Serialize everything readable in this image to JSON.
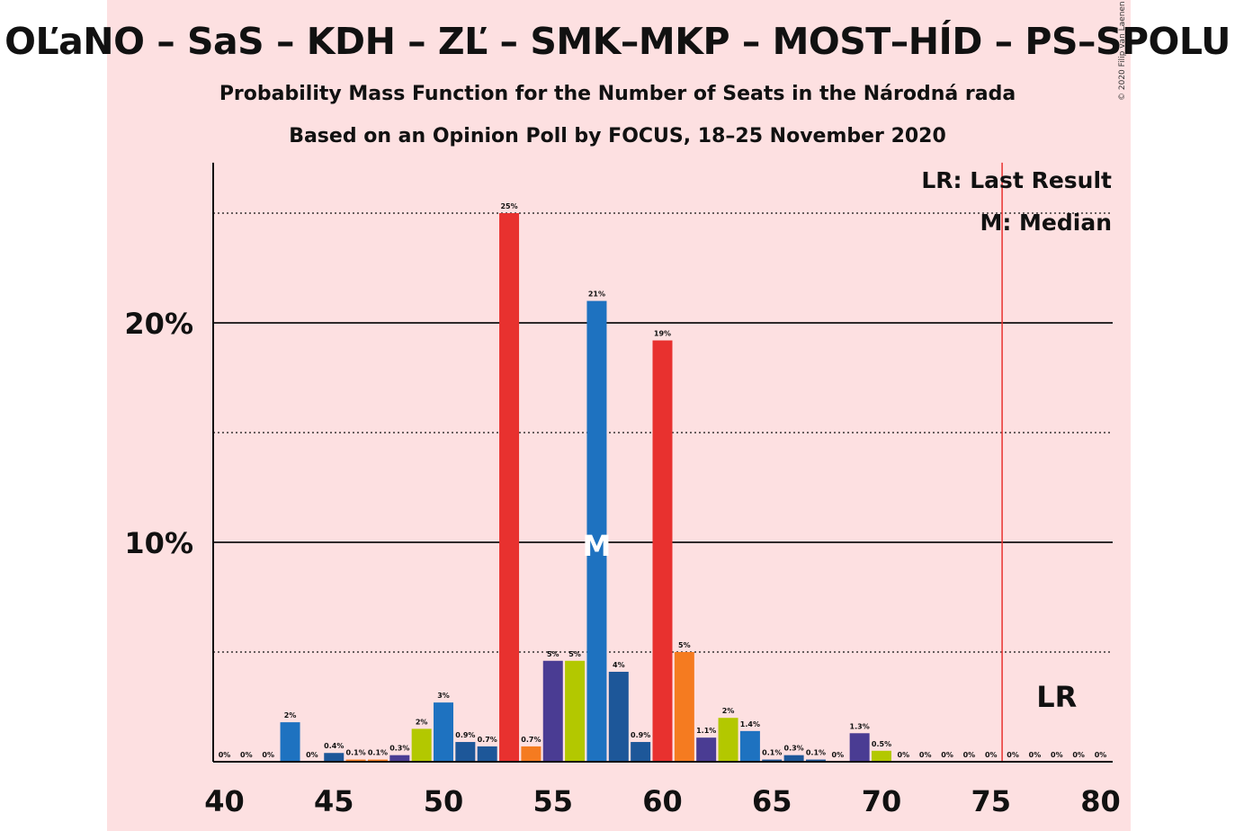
{
  "title": "OĽaNO – SaS – KDH – ZĽ – SMK–MKP – MOST–HÍD – PS–SPOLU",
  "subtitle1": "Probability Mass Function for the Number of Seats in the Národná rada",
  "subtitle2": "Based on an Opinion Poll by FOCUS, 18–25 November 2020",
  "copyright": "© 2020 Filip van Laenen",
  "legend": {
    "lr": "LR: Last Result",
    "m": "M: Median"
  },
  "markers": {
    "median_label": "M",
    "last_result_label": "LR"
  },
  "colors": {
    "background": "#fde0e1",
    "OĽaNO": "#1e72c0",
    "SaS": "#e8312f",
    "KDH": "#4a3c93",
    "ZĽ": "#b3c800",
    "SMK–MKP": "#1d5799",
    "PS–SPOLU": "#f57b20",
    "last_result_line": "#e8312f"
  },
  "chart_data": {
    "type": "bar",
    "x": [
      40,
      41,
      42,
      43,
      44,
      45,
      46,
      47,
      48,
      49,
      50,
      51,
      52,
      53,
      54,
      55,
      56,
      57,
      58,
      59,
      60,
      61,
      62,
      63,
      64,
      65,
      66,
      67,
      68,
      69,
      70,
      71,
      72,
      73,
      74,
      75,
      76,
      77,
      78,
      79,
      80
    ],
    "values": [
      0,
      0,
      0,
      1.8,
      0,
      0.4,
      0.1,
      0.1,
      0.3,
      1.5,
      2.7,
      0.9,
      0.7,
      25,
      0.7,
      4.6,
      4.6,
      21,
      4.1,
      0.9,
      19.2,
      5.0,
      1.1,
      2.0,
      1.4,
      0.1,
      0.3,
      0.1,
      0,
      1.3,
      0.5,
      0,
      0,
      0,
      0,
      0,
      0,
      0,
      0,
      0,
      0
    ],
    "labels": [
      "0%",
      "0%",
      "0%",
      "2%",
      "0%",
      "0.4%",
      "0.1%",
      "0.1%",
      "0.3%",
      "2%",
      "3%",
      "0.9%",
      "0.7%",
      "25%",
      "0.7%",
      "5%",
      "5%",
      "21%",
      "4%",
      "0.9%",
      "19%",
      "5%",
      "1.1%",
      "2%",
      "1.4%",
      "0.1%",
      "0.3%",
      "0.1%",
      "0%",
      "1.3%",
      "0.5%",
      "0%",
      "0%",
      "0%",
      "0%",
      "0%",
      "0%",
      "0%",
      "0%",
      "0%",
      "0%"
    ],
    "bar_colors": [
      "#1e72c0",
      "#1e72c0",
      "#1e72c0",
      "#1e72c0",
      "#1d5799",
      "#1d5799",
      "#f57b20",
      "#f57b20",
      "#4a3c93",
      "#b3c800",
      "#1e72c0",
      "#1d5799",
      "#1d5799",
      "#e8312f",
      "#f57b20",
      "#4a3c93",
      "#b3c800",
      "#1e72c0",
      "#1d5799",
      "#1d5799",
      "#e8312f",
      "#f57b20",
      "#4a3c93",
      "#b3c800",
      "#1e72c0",
      "#1d5799",
      "#1d5799",
      "#1d5799",
      "#4a3c93",
      "#4a3c93",
      "#b3c800",
      "#1e72c0",
      "#1d5799",
      "#1d5799",
      "#1d5799",
      "#1d5799",
      "#1d5799",
      "#1d5799",
      "#1d5799",
      "#1d5799",
      "#1d5799"
    ],
    "xticks": [
      40,
      45,
      50,
      55,
      60,
      65,
      70,
      75,
      80
    ],
    "yticks": [
      10,
      20
    ],
    "ytick_labels": [
      "10%",
      "20%"
    ],
    "ygrid_dotted": [
      5,
      15,
      25
    ],
    "ylim": [
      0,
      27.3
    ],
    "median": 57,
    "last_result": 76,
    "grid": true,
    "legend_position": "top-right"
  }
}
